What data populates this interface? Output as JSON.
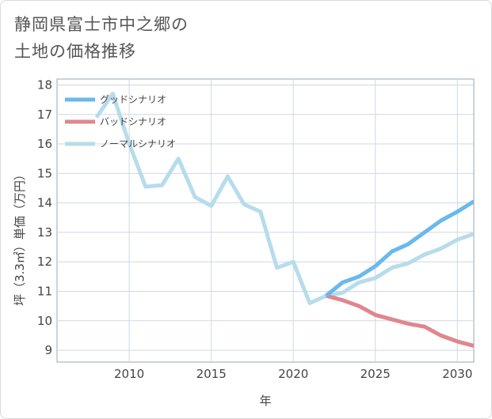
{
  "page": {
    "title_line1": "静岡県富士市中之郷の",
    "title_line2": "土地の価格推移"
  },
  "chart_data": {
    "type": "line",
    "xlabel": "年",
    "ylabel": "坪（3.3㎡）単価（万円）",
    "xlim": [
      2005.6,
      2031
    ],
    "ylim": [
      8.6,
      18.2
    ],
    "x_ticks": [
      2010,
      2015,
      2020,
      2025,
      2030
    ],
    "y_ticks": [
      9,
      10,
      11,
      12,
      13,
      14,
      15,
      16,
      17,
      18
    ],
    "legend_position": "top-left",
    "series": [
      {
        "name": "グッドシナリオ",
        "color": "#6ab8ee",
        "x": [
          2022,
          2023,
          2024,
          2025,
          2026,
          2027,
          2028,
          2029,
          2030,
          2031
        ],
        "values": [
          10.85,
          11.3,
          11.5,
          11.85,
          12.35,
          12.6,
          13.0,
          13.4,
          13.7,
          14.05
        ]
      },
      {
        "name": "バッドシナリオ",
        "color": "#e0868e",
        "x": [
          2022,
          2023,
          2024,
          2025,
          2026,
          2027,
          2028,
          2029,
          2030,
          2031
        ],
        "values": [
          10.85,
          10.7,
          10.5,
          10.2,
          10.05,
          9.9,
          9.8,
          9.5,
          9.3,
          9.15
        ]
      },
      {
        "name": "ノーマルシナリオ",
        "color": "#b7dcec",
        "x": [
          2008,
          2009,
          2010,
          2011,
          2012,
          2013,
          2014,
          2015,
          2016,
          2017,
          2018,
          2019,
          2020,
          2021,
          2022,
          2023,
          2024,
          2025,
          2026,
          2027,
          2028,
          2029,
          2030,
          2031
        ],
        "values": [
          16.9,
          17.7,
          16.0,
          14.55,
          14.6,
          15.5,
          14.2,
          13.9,
          14.9,
          13.95,
          13.7,
          11.8,
          12.0,
          10.6,
          10.85,
          10.95,
          11.3,
          11.45,
          11.8,
          11.95,
          12.25,
          12.45,
          12.75,
          12.95
        ]
      }
    ]
  }
}
